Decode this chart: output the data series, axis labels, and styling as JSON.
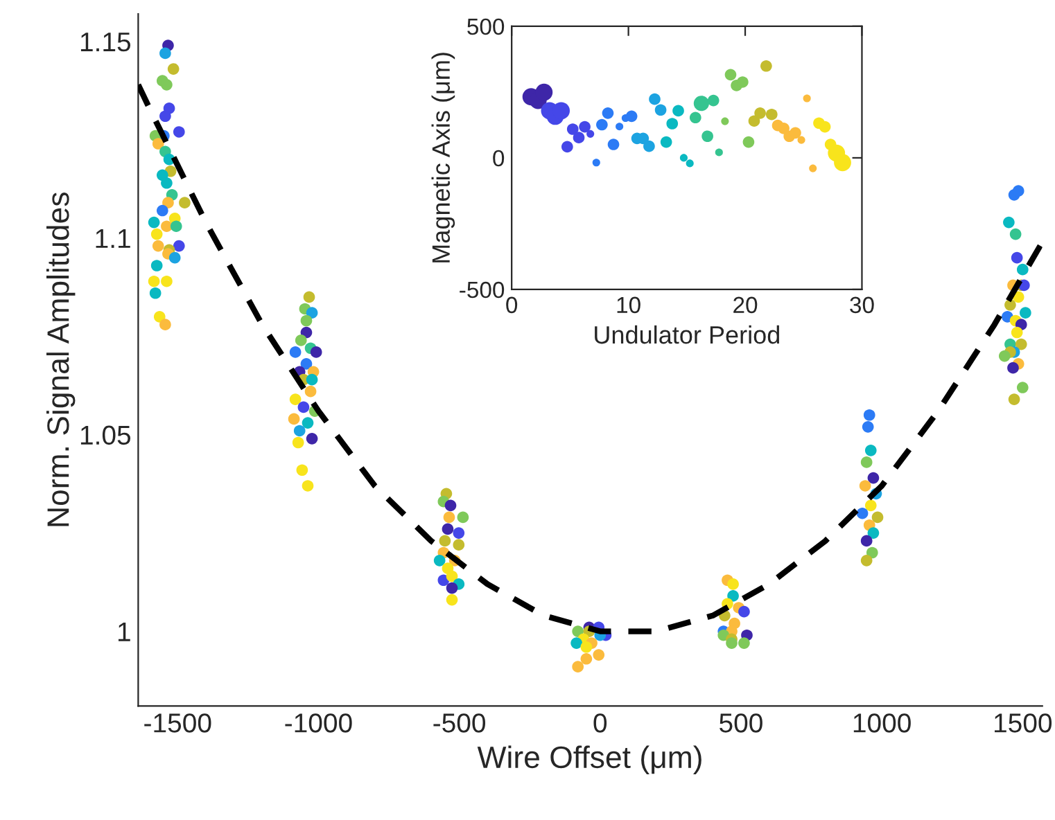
{
  "chart_data": [
    {
      "type": "scatter",
      "xlabel": "Wire Offset (μm)",
      "ylabel": "Norm. Signal Amplitudes",
      "xlim": [
        -1640,
        1570
      ],
      "ylim": [
        0.981,
        1.157
      ],
      "xticks": [
        -1500,
        -1000,
        -500,
        0,
        500,
        1000,
        1500
      ],
      "yticks": [
        1,
        1.05,
        1.1,
        1.15
      ],
      "series": [
        {
          "marker": "circle",
          "x": [
            -1534,
            -1544,
            -1515,
            -1554,
            -1539,
            -1530,
            -1544,
            -1495,
            -1549,
            -1579,
            -1569,
            -1544,
            -1530,
            -1525,
            -1554,
            -1539,
            -1520,
            -1475,
            -1534,
            -1554,
            -1510,
            -1584,
            -1539,
            -1505,
            -1574,
            -1495,
            -1569,
            -1530,
            -1534,
            -1510,
            -1574,
            -1584,
            -1539,
            -1579,
            -1564,
            -1544,
            -1033,
            -1048,
            -1023,
            -1043,
            -1043,
            -1062,
            -1028,
            -1008,
            -1082,
            -1043,
            -1067,
            -1018,
            -1053,
            -1023,
            -1028,
            -1082,
            -1053,
            -1013,
            -1087,
            -1038,
            -1067,
            -1023,
            -1072,
            -1058,
            -1038,
            -546,
            -556,
            -531,
            -536,
            -487,
            -541,
            -502,
            -551,
            -502,
            -556,
            -516,
            -570,
            -541,
            -556,
            -526,
            -502,
            -526,
            -526,
            -39,
            -5,
            -79,
            -39,
            20,
            0,
            -59,
            -84,
            -30,
            -49,
            -5,
            -49,
            -79,
            452,
            472,
            472,
            452,
            492,
            511,
            442,
            477,
            438,
            467,
            521,
            438,
            467,
            467,
            511,
            956,
            951,
            961,
            946,
            970,
            941,
            980,
            961,
            931,
            985,
            956,
            970,
            946,
            966,
            946,
            1470,
            1485,
            1451,
            1475,
            1480,
            1500,
            1466,
            1495,
            1505,
            1485,
            1456,
            1510,
            1446,
            1475,
            1495,
            1480,
            1456,
            1495,
            1470,
            1456,
            1436,
            1485,
            1466,
            1500,
            1470
          ],
          "values": [
            1.149,
            1.147,
            1.143,
            1.14,
            1.139,
            1.133,
            1.131,
            1.127,
            1.126,
            1.126,
            1.124,
            1.122,
            1.12,
            1.117,
            1.116,
            1.114,
            1.111,
            1.109,
            1.109,
            1.107,
            1.105,
            1.104,
            1.103,
            1.103,
            1.101,
            1.098,
            1.098,
            1.097,
            1.096,
            1.095,
            1.093,
            1.089,
            1.089,
            1.086,
            1.08,
            1.078,
            1.085,
            1.082,
            1.081,
            1.079,
            1.076,
            1.074,
            1.072,
            1.071,
            1.071,
            1.068,
            1.066,
            1.066,
            1.064,
            1.064,
            1.061,
            1.059,
            1.057,
            1.056,
            1.054,
            1.053,
            1.051,
            1.049,
            1.048,
            1.041,
            1.037,
            1.035,
            1.033,
            1.032,
            1.029,
            1.029,
            1.026,
            1.025,
            1.023,
            1.022,
            1.02,
            1.018,
            1.018,
            1.016,
            1.013,
            1.014,
            1.012,
            1.011,
            1.008,
            1.001,
            1.001,
            1.0,
            1.0,
            0.999,
            0.999,
            0.998,
            0.997,
            0.997,
            0.996,
            0.994,
            0.993,
            0.991,
            1.013,
            1.012,
            1.009,
            1.007,
            1.006,
            1.005,
            1.004,
            1.002,
            1.0,
            1.0,
            0.999,
            0.999,
            0.998,
            0.997,
            0.997,
            1.055,
            1.052,
            1.046,
            1.043,
            1.039,
            1.037,
            1.035,
            1.032,
            1.03,
            1.029,
            1.027,
            1.025,
            1.023,
            1.02,
            1.018,
            1.111,
            1.112,
            1.104,
            1.101,
            1.095,
            1.092,
            1.088,
            1.088,
            1.088,
            1.085,
            1.083,
            1.081,
            1.08,
            1.079,
            1.078,
            1.076,
            1.073,
            1.073,
            1.071,
            1.071,
            1.07,
            1.068,
            1.067,
            1.062,
            1.059
          ],
          "colors": [
            "#3e26a8",
            "#1ca3e1",
            "#c4bc2e",
            "#7fc95a",
            "#7fc95a",
            "#4547e8",
            "#4547e8",
            "#4547e8",
            "#2c7bf5",
            "#7fc95a",
            "#fbbb3d",
            "#35c490",
            "#0ab9c1",
            "#c4bc2e",
            "#0ab9c1",
            "#0ab9c1",
            "#35c490",
            "#c4bc2e",
            "#fbbb3d",
            "#2c7bf5",
            "#f8e41c",
            "#0ab9c1",
            "#fbbb3d",
            "#35c490",
            "#f8e41c",
            "#4547e8",
            "#fbbb3d",
            "#c4bc2e",
            "#fbbb3d",
            "#1ca3e1",
            "#0ab9c1",
            "#f8e41c",
            "#f8e41c",
            "#0ab9c1",
            "#f8e41c",
            "#fbbb3d",
            "#c4bc2e",
            "#7fc95a",
            "#1ca3e1",
            "#7fc95a",
            "#3e26a8",
            "#7fc95a",
            "#35c490",
            "#3e26a8",
            "#2c7bf5",
            "#2c7bf5",
            "#3e26a8",
            "#fbbb3d",
            "#c4bc2e",
            "#0ab9c1",
            "#fbbb3d",
            "#f8e41c",
            "#4547e8",
            "#7fc95a",
            "#fbbb3d",
            "#0ab9c1",
            "#1ca3e1",
            "#3e26a8",
            "#f8e41c",
            "#f8e41c",
            "#f8e41c",
            "#c4bc2e",
            "#7fc95a",
            "#3e26a8",
            "#fbbb3d",
            "#7fc95a",
            "#3e26a8",
            "#4547e8",
            "#c4bc2e",
            "#c4bc2e",
            "#fbbb3d",
            "#fbbb3d",
            "#0ab9c1",
            "#f8e41c",
            "#4547e8",
            "#f8e41c",
            "#0ab9c1",
            "#3e26a8",
            "#f8e41c",
            "#3e26a8",
            "#4547e8",
            "#7fc95a",
            "#c4bc2e",
            "#4547e8",
            "#1ca3e1",
            "#f8e41c",
            "#0ab9c1",
            "#fbbb3d",
            "#f8e41c",
            "#fbbb3d",
            "#fbbb3d",
            "#fbbb3d",
            "#fbbb3d",
            "#f8e41c",
            "#0ab9c1",
            "#f8e41c",
            "#fbbb3d",
            "#4547e8",
            "#c4bc2e",
            "#fbbb3d",
            "#2c7bf5",
            "#fbbb3d",
            "#3e26a8",
            "#7fc95a",
            "#c4bc2e",
            "#7fc95a",
            "#7fc95a",
            "#2c7bf5",
            "#2c7bf5",
            "#0ab9c1",
            "#7fc95a",
            "#3e26a8",
            "#fbbb3d",
            "#1ca3e1",
            "#f8e41c",
            "#2c7bf5",
            "#c4bc2e",
            "#fbbb3d",
            "#0ab9c1",
            "#3e26a8",
            "#7fc95a",
            "#c4bc2e",
            "#2c7bf5",
            "#2c7bf5",
            "#0ab9c1",
            "#35c490",
            "#4547e8",
            "#0ab9c1",
            "#fbbb3d",
            "#c4bc2e",
            "#4547e8",
            "#f8e41c",
            "#c4bc2e",
            "#0ab9c1",
            "#2c7bf5",
            "#f8e41c",
            "#3e26a8",
            "#f8e41c",
            "#35c490",
            "#c4bc2e",
            "#1ca3e1",
            "#c4bc2e",
            "#7fc95a",
            "#fbbb3d",
            "#3e26a8",
            "#7fc95a",
            "#c4bc2e"
          ]
        },
        {
          "type": "line",
          "color": "#000000",
          "line_style": "dashed",
          "marker": "none",
          "x": [
            -1640,
            -1600,
            -1400,
            -1200,
            -1000,
            -800,
            -600,
            -400,
            -200,
            0,
            100,
            200,
            400,
            600,
            800,
            1000,
            1200,
            1400,
            1570
          ],
          "values": [
            1.139,
            1.133,
            1.104,
            1.078,
            1.056,
            1.037,
            1.023,
            1.012,
            1.004,
            1.0,
            1.0,
            1.0,
            1.004,
            1.012,
            1.023,
            1.037,
            1.056,
            1.078,
            1.099
          ]
        }
      ]
    },
    {
      "type": "scatter",
      "xlabel": "Undulator Period",
      "ylabel": "Magnetic Axis (μm)",
      "xlim": [
        0,
        30
      ],
      "ylim": [
        -500,
        500
      ],
      "xticks": [
        0,
        10,
        20,
        30
      ],
      "yticks": [
        -500,
        0,
        500
      ],
      "series": [
        {
          "marker": "circle",
          "x": [
            1.66,
            2.26,
            2.77,
            3.25,
            3.73,
            4.24,
            4.76,
            5.23,
            5.75,
            6.26,
            6.74,
            7.25,
            7.73,
            8.24,
            8.72,
            9.23,
            9.75,
            10.27,
            10.74,
            11.26,
            11.77,
            12.25,
            12.76,
            13.24,
            13.75,
            14.27,
            14.74,
            15.26,
            15.74,
            16.25,
            16.77,
            17.28,
            17.76,
            18.27,
            18.75,
            19.26,
            19.78,
            20.29,
            20.77,
            21.28,
            21.8,
            22.27,
            22.79,
            23.3,
            23.78,
            24.3,
            24.81,
            25.29,
            25.8,
            26.32,
            26.83,
            27.31,
            27.82,
            28.34
          ],
          "values": [
            232,
            218,
            249,
            179,
            158,
            179,
            42,
            109,
            77,
            118,
            91,
            -18,
            126,
            170,
            51,
            119,
            151,
            158,
            74,
            74,
            44,
            223,
            182,
            60,
            130,
            179,
            0,
            -21,
            153,
            207,
            82,
            218,
            21,
            139,
            316,
            275,
            288,
            60,
            140,
            170,
            349,
            165,
            123,
            112,
            82,
            95,
            68,
            226,
            -40,
            132,
            118,
            51,
            18,
            -18
          ],
          "sizes": [
            1,
            1,
            1,
            1,
            1,
            1,
            0.45,
            0.45,
            0.45,
            0.45,
            0.2,
            0.2,
            0.45,
            0.45,
            0.45,
            0.2,
            0.2,
            0.45,
            0.45,
            0.45,
            0.45,
            0.45,
            0.45,
            0.45,
            0.45,
            0.45,
            0.2,
            0.2,
            0.45,
            0.8,
            0.45,
            0.45,
            0.2,
            0.2,
            0.45,
            0.45,
            0.45,
            0.45,
            0.45,
            0.45,
            0.45,
            0.45,
            0.45,
            0.45,
            0.45,
            0.45,
            0.2,
            0.2,
            0.2,
            0.45,
            0.45,
            0.45,
            1,
            1
          ],
          "colors": [
            "#3e26a8",
            "#3e26a8",
            "#3e26a8",
            "#4547e8",
            "#4547e8",
            "#4547e8",
            "#4547e8",
            "#4547e8",
            "#4547e8",
            "#4547e8",
            "#4547e8",
            "#2c7bf5",
            "#2c7bf5",
            "#2c7bf5",
            "#2c7bf5",
            "#2c7bf5",
            "#2c7bf5",
            "#2c7bf5",
            "#1ca3e1",
            "#1ca3e1",
            "#1ca3e1",
            "#1ca3e1",
            "#1ca3e1",
            "#0ab9c1",
            "#0ab9c1",
            "#0ab9c1",
            "#0ab9c1",
            "#0ab9c1",
            "#35c490",
            "#35c490",
            "#35c490",
            "#35c490",
            "#35c490",
            "#7fc95a",
            "#7fc95a",
            "#7fc95a",
            "#7fc95a",
            "#7fc95a",
            "#c4bc2e",
            "#c4bc2e",
            "#c4bc2e",
            "#c4bc2e",
            "#fbbb3d",
            "#fbbb3d",
            "#fbbb3d",
            "#fbbb3d",
            "#fbbb3d",
            "#fbbb3d",
            "#fbbb3d",
            "#f8e41c",
            "#f8e41c",
            "#f8e41c",
            "#f8e41c",
            "#f8e41c"
          ]
        }
      ]
    }
  ]
}
